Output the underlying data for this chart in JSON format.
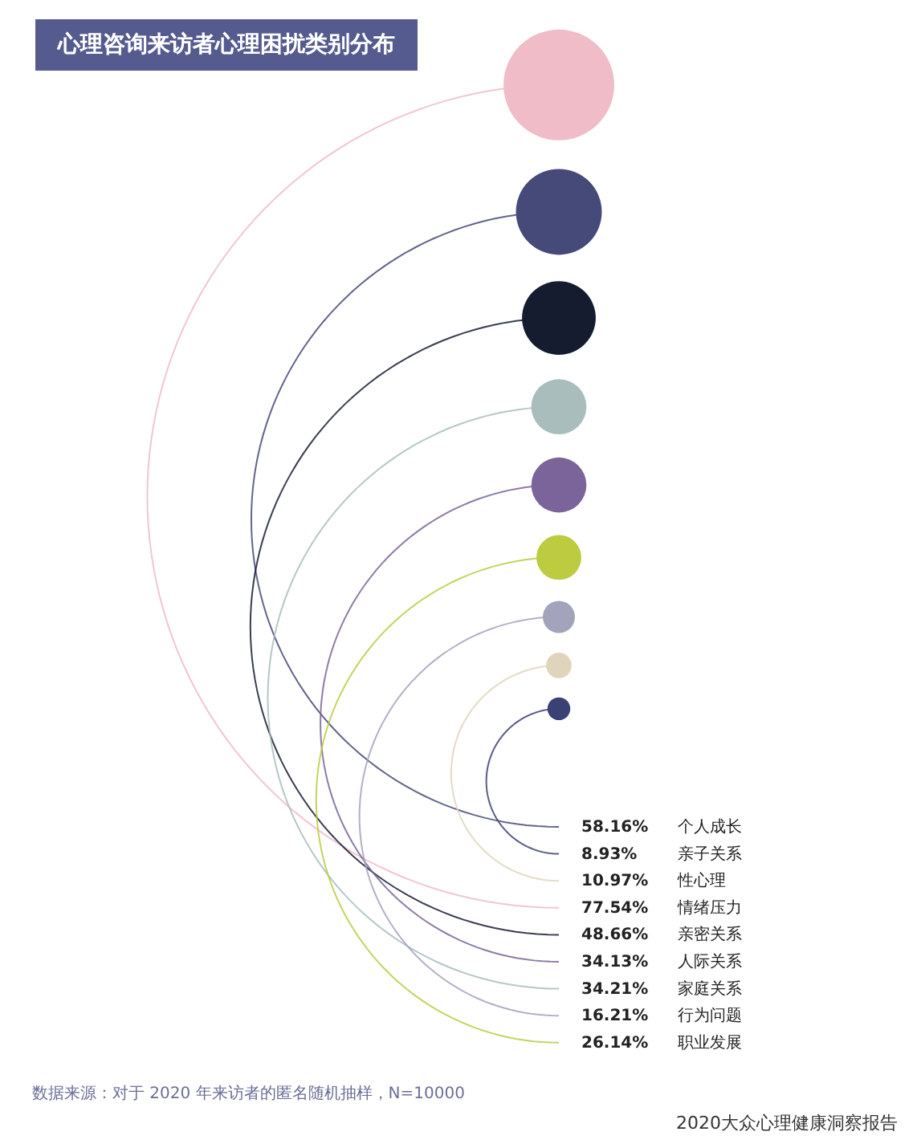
{
  "chart_data": {
    "type": "other",
    "title": "心理咨询来访者心理困扰类别分布",
    "categories": [
      "个人成长",
      "亲子关系",
      "性心理",
      "情绪压力",
      "亲密关系",
      "人际关系",
      "家庭关系",
      "行为问题",
      "职业发展"
    ],
    "values": [
      58.16,
      8.93,
      10.97,
      77.54,
      48.66,
      34.13,
      34.21,
      16.21,
      26.14
    ],
    "value_labels": [
      "58.16%",
      "8.93%",
      "10.97%",
      "77.54%",
      "48.66%",
      "34.13%",
      "34.21%",
      "16.21%",
      "26.14%"
    ],
    "colors": [
      "#464a78",
      "#3b4175",
      "#e0d4bc",
      "#efbcc8",
      "#161c30",
      "#7a6499",
      "#a9bdbd",
      "#a3a3bb",
      "#bccb40"
    ],
    "annotations": [
      "数据来源：对于 2020 年来访者的匿名随机抽样，N=10000",
      "2020大众心理健康洞察报告"
    ]
  }
}
